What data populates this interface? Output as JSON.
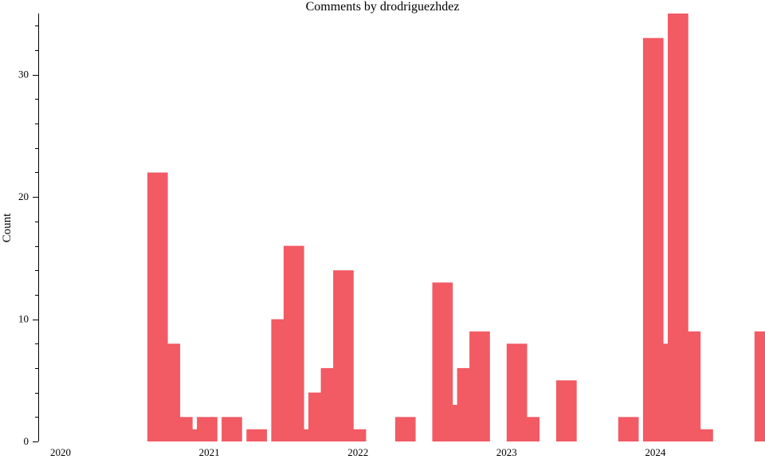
{
  "chart_data": {
    "type": "bar",
    "title": "Comments by drodriguezhdez",
    "xlabel": "",
    "ylabel": "Count",
    "ylim": [
      0,
      35
    ],
    "yticks": [
      0,
      10,
      20,
      30
    ],
    "xticks": [
      "2020",
      "2021",
      "2022",
      "2023",
      "2024"
    ],
    "grid": false,
    "colors": {
      "bar": "#f25a64",
      "axis": "#000000"
    },
    "series": [
      {
        "months": [
          "2020-08",
          "2020-09",
          "2020-10",
          "2020-11",
          "2020-12",
          "2021-02",
          "2021-04",
          "2021-06",
          "2021-07",
          "2021-08",
          "2021-09",
          "2021-10",
          "2021-11",
          "2021-12",
          "2022-04",
          "2022-07",
          "2022-08",
          "2022-09",
          "2022-10",
          "2023-01",
          "2023-02",
          "2023-05",
          "2023-10",
          "2023-12",
          "2024-01",
          "2024-02",
          "2024-03",
          "2024-04",
          "2024-05",
          "2024-06",
          "2024-09"
        ],
        "values": [
          22,
          8,
          2,
          1,
          2,
          2,
          1,
          10,
          16,
          1,
          4,
          6,
          14,
          1,
          2,
          13,
          3,
          6,
          9,
          8,
          2,
          5,
          2,
          33,
          8,
          35,
          9,
          1,
          0,
          0,
          9
        ]
      }
    ]
  }
}
